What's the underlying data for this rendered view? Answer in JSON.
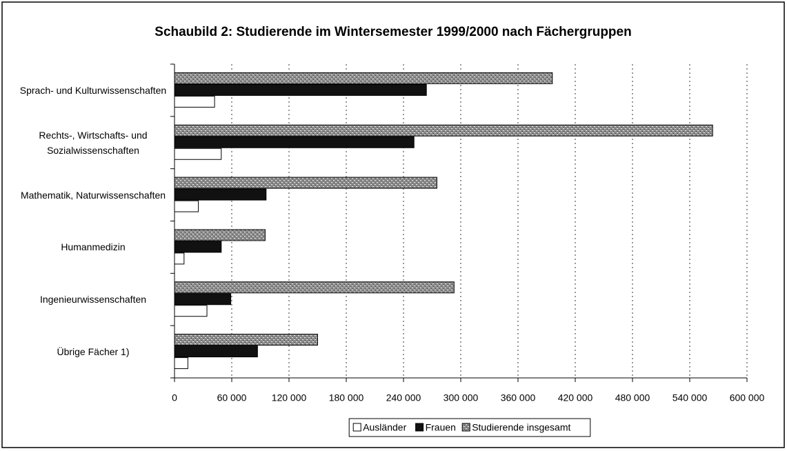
{
  "chart_data": {
    "type": "bar",
    "orientation": "horizontal",
    "title": "Schaubild 2: Studierende im Wintersemester 1999/2000 nach Fächergruppen",
    "categories": [
      "Sprach- und Kulturwissenschaften",
      "Rechts-, Wirtschafts- und Sozialwissenschaften",
      "Mathematik, Naturwissenschaften",
      "Humanmedizin",
      "Ingenieurwissenschaften",
      "Übrige Fächer 1)"
    ],
    "series": [
      {
        "name": "Ausländer",
        "color": "#ffffff",
        "values": [
          42000,
          49000,
          25000,
          10000,
          34000,
          14000
        ]
      },
      {
        "name": "Frauen",
        "color": "#111111",
        "values": [
          264000,
          251000,
          96000,
          49000,
          59000,
          87000
        ]
      },
      {
        "name": "Studierende insgesamt",
        "color": "#a0a0a0",
        "values": [
          396000,
          564000,
          275000,
          95000,
          293000,
          150000
        ]
      }
    ],
    "xlim": [
      0,
      600000
    ],
    "xticks": [
      0,
      {
        "value": 60000,
        "label": "60 000"
      },
      {
        "value": 120000,
        "label": "120 000"
      },
      {
        "value": 180000,
        "label": "180 000"
      },
      {
        "value": 240000,
        "label": "240 000"
      },
      {
        "value": 300000,
        "label": "300 000"
      },
      {
        "value": 360000,
        "label": "360 000"
      },
      {
        "value": 420000,
        "label": "420 000"
      },
      {
        "value": 480000,
        "label": "480 000"
      },
      {
        "value": 540000,
        "label": "540 000"
      },
      {
        "value": 600000,
        "label": "600 000"
      }
    ],
    "grid": true,
    "legend": "bottom"
  }
}
